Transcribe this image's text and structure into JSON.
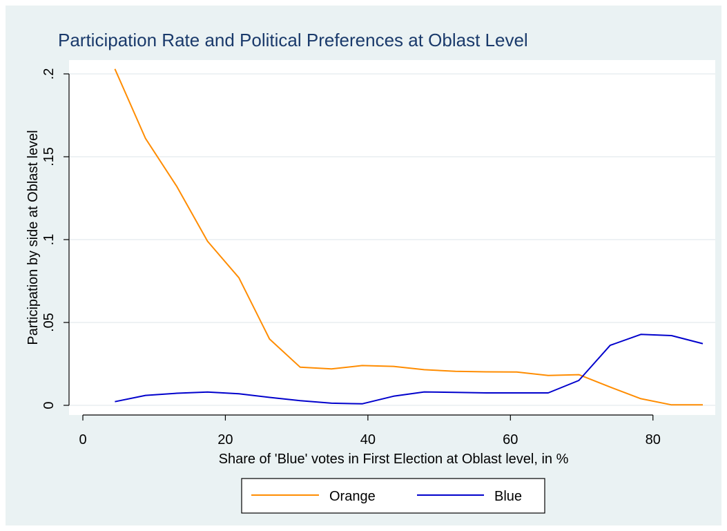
{
  "chart_data": {
    "type": "line",
    "title": "Participation Rate and Political Preferences at Oblast Level",
    "xlabel": "Share of 'Blue' votes in First Election at Oblast level, in %",
    "ylabel": "Participation by side at Oblast level",
    "xlim": [
      0,
      87
    ],
    "ylim": [
      0,
      0.2
    ],
    "x_ticks": [
      0,
      20,
      40,
      60,
      80
    ],
    "x_tick_labels": [
      "0",
      "20",
      "40",
      "60",
      "80"
    ],
    "y_ticks": [
      0,
      0.05,
      0.1,
      0.15,
      0.2
    ],
    "y_tick_labels": [
      "0",
      ".05",
      ".1",
      ".15",
      ".2"
    ],
    "grid": true,
    "legend_position": "bottom",
    "series": [
      {
        "name": "Orange",
        "color": "#ff8c00",
        "x": [
          4.5,
          8.8,
          13.2,
          17.5,
          21.9,
          26.2,
          30.5,
          34.9,
          39.2,
          43.6,
          47.9,
          52.3,
          56.6,
          60.9,
          65.3,
          69.6,
          74.0,
          78.3,
          82.6,
          87.0
        ],
        "y": [
          0.203,
          0.161,
          0.132,
          0.099,
          0.077,
          0.04,
          0.023,
          0.022,
          0.024,
          0.0235,
          0.0215,
          0.0205,
          0.0202,
          0.0201,
          0.018,
          0.0185,
          0.011,
          0.004,
          0.0003,
          0.0003
        ]
      },
      {
        "name": "Blue",
        "color": "#0000cc",
        "x": [
          4.5,
          8.8,
          13.2,
          17.5,
          21.9,
          26.2,
          30.5,
          34.9,
          39.2,
          43.6,
          47.9,
          52.3,
          56.6,
          60.9,
          65.3,
          69.6,
          74.0,
          78.3,
          82.6,
          87.0
        ],
        "y": [
          0.0022,
          0.006,
          0.0073,
          0.008,
          0.007,
          0.0048,
          0.0028,
          0.0013,
          0.0009,
          0.0055,
          0.0081,
          0.0078,
          0.0075,
          0.0075,
          0.0075,
          0.015,
          0.0362,
          0.0428,
          0.0421,
          0.0372
        ]
      }
    ]
  }
}
